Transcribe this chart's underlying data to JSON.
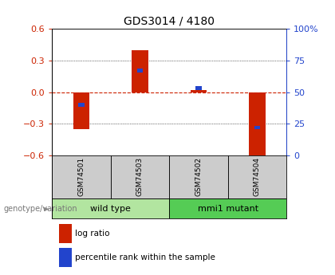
{
  "title": "GDS3014 / 4180",
  "samples": [
    "GSM74501",
    "GSM74503",
    "GSM74502",
    "GSM74504"
  ],
  "log_ratios": [
    -0.35,
    0.4,
    0.02,
    -0.62
  ],
  "percentile_ranks": [
    0.4,
    0.67,
    0.53,
    0.22
  ],
  "groups": [
    {
      "label": "wild type",
      "samples": [
        0,
        1
      ],
      "color": "#b2e5a0"
    },
    {
      "label": "mmi1 mutant",
      "samples": [
        2,
        3
      ],
      "color": "#55cc55"
    }
  ],
  "ylim": [
    -0.6,
    0.6
  ],
  "yticks_left": [
    -0.6,
    -0.3,
    0.0,
    0.3,
    0.6
  ],
  "right_labels": [
    "0",
    "25",
    "50",
    "75",
    "100%"
  ],
  "bar_color_red": "#cc2200",
  "bar_color_blue": "#2244cc",
  "zero_line_color": "#cc2200",
  "bg_color": "#ffffff",
  "group_label_text": "genotype/variation",
  "legend_log_ratio": "log ratio",
  "legend_percentile": "percentile rank within the sample",
  "bar_width": 0.28,
  "blue_bar_width": 0.1,
  "blue_bar_height": 0.035,
  "sample_box_color": "#cccccc",
  "title_fontsize": 10,
  "tick_fontsize": 8,
  "label_fontsize": 8,
  "legend_fontsize": 7.5
}
